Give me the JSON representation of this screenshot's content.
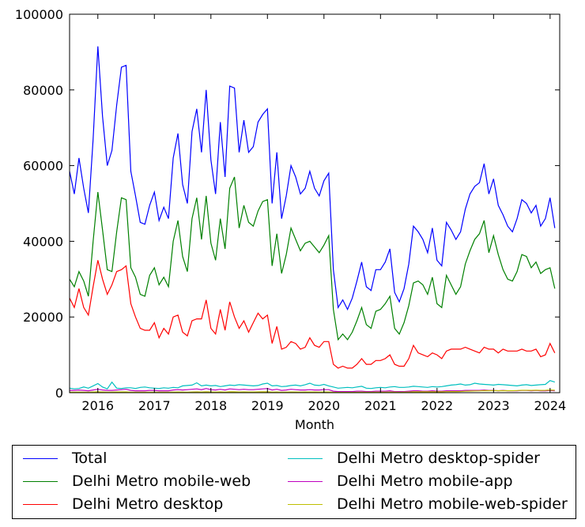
{
  "chart_data": {
    "type": "line",
    "title": "",
    "xlabel": "Month",
    "ylabel": "",
    "ylim": [
      0,
      100000
    ],
    "xlim": [
      2015.5,
      2024.17
    ],
    "yticks": [
      0,
      20000,
      40000,
      60000,
      80000,
      100000
    ],
    "ytick_labels": [
      "0",
      "20000",
      "40000",
      "60000",
      "80000",
      "100000"
    ],
    "xticks": [
      2016,
      2017,
      2018,
      2019,
      2020,
      2021,
      2022,
      2023,
      2024
    ],
    "xtick_labels": [
      "2016",
      "2017",
      "2018",
      "2019",
      "2020",
      "2021",
      "2022",
      "2023",
      "2024"
    ],
    "x_start": 2015.5,
    "x_step_months": 1,
    "grid": false,
    "legend_position": "below",
    "series": [
      {
        "name": "Total",
        "color": "#0000ff",
        "values": [
          58500,
          52500,
          62000,
          54000,
          47500,
          67000,
          91500,
          73000,
          60000,
          64000,
          76000,
          86000,
          86500,
          58500,
          52000,
          45000,
          44500,
          49500,
          53000,
          45500,
          49000,
          46000,
          62000,
          68500,
          55000,
          50000,
          69000,
          75000,
          63500,
          80000,
          61500,
          52500,
          71500,
          57000,
          81000,
          80500,
          63500,
          72000,
          63500,
          65000,
          71500,
          73500,
          75000,
          50000,
          63500,
          46000,
          52000,
          60000,
          57000,
          52500,
          54000,
          58500,
          54000,
          52000,
          56000,
          58000,
          32500,
          22500,
          24500,
          22000,
          25000,
          29500,
          34500,
          28000,
          27000,
          32500,
          32500,
          34500,
          38000,
          26500,
          24000,
          27500,
          34000,
          44000,
          42500,
          40500,
          37000,
          43500,
          35000,
          33500,
          45000,
          43000,
          40500,
          42500,
          48500,
          52500,
          54500,
          55500,
          60500,
          52500,
          56500,
          49500,
          47000,
          44000,
          42500,
          46000,
          51000,
          50000,
          47500,
          49500,
          44000,
          46000,
          51500,
          43500
        ]
      },
      {
        "name": "Delhi Metro mobile-web",
        "color": "#008000",
        "values": [
          30000,
          28000,
          32000,
          29500,
          25500,
          40000,
          53000,
          43000,
          32500,
          32000,
          42500,
          51500,
          51000,
          33000,
          30500,
          26000,
          25500,
          31000,
          33000,
          28500,
          30500,
          28000,
          40000,
          45500,
          36000,
          32000,
          46000,
          51500,
          40500,
          52000,
          39500,
          35000,
          46000,
          38000,
          54000,
          57000,
          43500,
          49500,
          45000,
          44000,
          48000,
          50500,
          51000,
          33500,
          42000,
          31500,
          36500,
          43500,
          40500,
          37500,
          39500,
          40000,
          38500,
          37000,
          39000,
          41500,
          22000,
          14000,
          15500,
          14000,
          16000,
          19000,
          22500,
          18000,
          17000,
          21500,
          22000,
          23500,
          25500,
          17000,
          15500,
          18500,
          23000,
          29000,
          29500,
          28500,
          26000,
          30500,
          23500,
          22500,
          31000,
          28500,
          26000,
          28000,
          34000,
          37500,
          40500,
          42000,
          45500,
          37000,
          41500,
          36500,
          32500,
          30000,
          29500,
          32000,
          36500,
          36000,
          33000,
          34500,
          31500,
          32500,
          33000,
          27500
        ]
      },
      {
        "name": "Delhi Metro desktop",
        "color": "#ff0000",
        "values": [
          25000,
          22500,
          27500,
          22500,
          20500,
          28000,
          35000,
          30000,
          26000,
          28500,
          32000,
          32500,
          33500,
          23500,
          20000,
          17000,
          16500,
          16500,
          18500,
          14500,
          17000,
          15500,
          20000,
          20500,
          16000,
          15000,
          19000,
          19500,
          19500,
          24500,
          17000,
          15500,
          22000,
          16500,
          24000,
          20000,
          17000,
          19000,
          16000,
          18500,
          21000,
          19500,
          20500,
          13000,
          17500,
          11500,
          12000,
          13500,
          13000,
          11500,
          12000,
          14500,
          12500,
          12000,
          13500,
          13500,
          7500,
          6500,
          7000,
          6500,
          6500,
          7500,
          9000,
          7500,
          7500,
          8500,
          8500,
          9000,
          10000,
          7500,
          7000,
          7000,
          9000,
          12500,
          10500,
          10000,
          9500,
          10500,
          10000,
          9000,
          11000,
          11500,
          11500,
          11500,
          12000,
          11500,
          11000,
          10500,
          12000,
          11500,
          11500,
          10500,
          11500,
          11000,
          11000,
          11000,
          11500,
          11000,
          11000,
          11500,
          9500,
          10000,
          13000,
          10500
        ]
      },
      {
        "name": "Delhi Metro desktop-spider",
        "color": "#00bfbf",
        "values": [
          1200,
          1000,
          1100,
          1500,
          1200,
          1800,
          2400,
          1500,
          1000,
          2800,
          1200,
          1100,
          1300,
          1300,
          1100,
          1400,
          1500,
          1300,
          1200,
          1100,
          1300,
          1200,
          1400,
          1300,
          1800,
          1900,
          2000,
          2600,
          1800,
          2000,
          1800,
          1900,
          1600,
          1800,
          2000,
          1900,
          2100,
          2000,
          1900,
          1800,
          1900,
          2300,
          2500,
          1800,
          1900,
          1600,
          1700,
          1900,
          2000,
          1800,
          2100,
          2500,
          2000,
          1900,
          2200,
          1800,
          1500,
          1200,
          1300,
          1400,
          1300,
          1500,
          1700,
          1200,
          1100,
          1300,
          1400,
          1300,
          1500,
          1600,
          1400,
          1400,
          1500,
          1700,
          1600,
          1500,
          1400,
          1600,
          1500,
          1600,
          1800,
          2000,
          2100,
          2300,
          2000,
          2100,
          2500,
          2300,
          2200,
          2100,
          2000,
          2200,
          2100,
          2000,
          1900,
          1800,
          2000,
          2100,
          1900,
          2000,
          2100,
          2200,
          3200,
          2800
        ]
      },
      {
        "name": "Delhi Metro mobile-app",
        "color": "#bf00bf",
        "values": [
          600,
          600,
          700,
          600,
          500,
          700,
          900,
          700,
          600,
          600,
          700,
          800,
          900,
          600,
          500,
          500,
          500,
          600,
          600,
          500,
          500,
          500,
          700,
          800,
          700,
          800,
          900,
          1000,
          800,
          1100,
          800,
          700,
          900,
          700,
          1000,
          900,
          800,
          900,
          800,
          800,
          900,
          1000,
          1100,
          700,
          900,
          600,
          700,
          900,
          800,
          700,
          700,
          800,
          700,
          700,
          800,
          800,
          400,
          300,
          300,
          300,
          300,
          400,
          400,
          300,
          300,
          400,
          400,
          400,
          500,
          300,
          300,
          300,
          400,
          500,
          500,
          400,
          400,
          500,
          400,
          400,
          500,
          500,
          500,
          500,
          600,
          600,
          600,
          600,
          700,
          600,
          600,
          500,
          600,
          500,
          500,
          500,
          600,
          600,
          500,
          600,
          500,
          500,
          600,
          500
        ]
      },
      {
        "name": "Delhi Metro mobile-web-spider",
        "color": "#bfbf00",
        "values": [
          150,
          130,
          160,
          140,
          120,
          180,
          220,
          180,
          150,
          160,
          190,
          210,
          210,
          150,
          140,
          120,
          120,
          140,
          150,
          130,
          140,
          130,
          170,
          190,
          160,
          150,
          190,
          210,
          180,
          220,
          180,
          160,
          200,
          170,
          230,
          230,
          190,
          210,
          190,
          190,
          210,
          220,
          230,
          160,
          190,
          150,
          170,
          190,
          180,
          170,
          180,
          190,
          180,
          170,
          180,
          190,
          110,
          80,
          90,
          80,
          90,
          110,
          130,
          110,
          100,
          120,
          130,
          140,
          160,
          120,
          110,
          130,
          170,
          220,
          230,
          230,
          220,
          250,
          230,
          230,
          280,
          290,
          300,
          320,
          370,
          420,
          460,
          490,
          540,
          520,
          560,
          530,
          530,
          520,
          520,
          560,
          620,
          620,
          600,
          640,
          600,
          630,
          700,
          640
        ]
      }
    ]
  }
}
